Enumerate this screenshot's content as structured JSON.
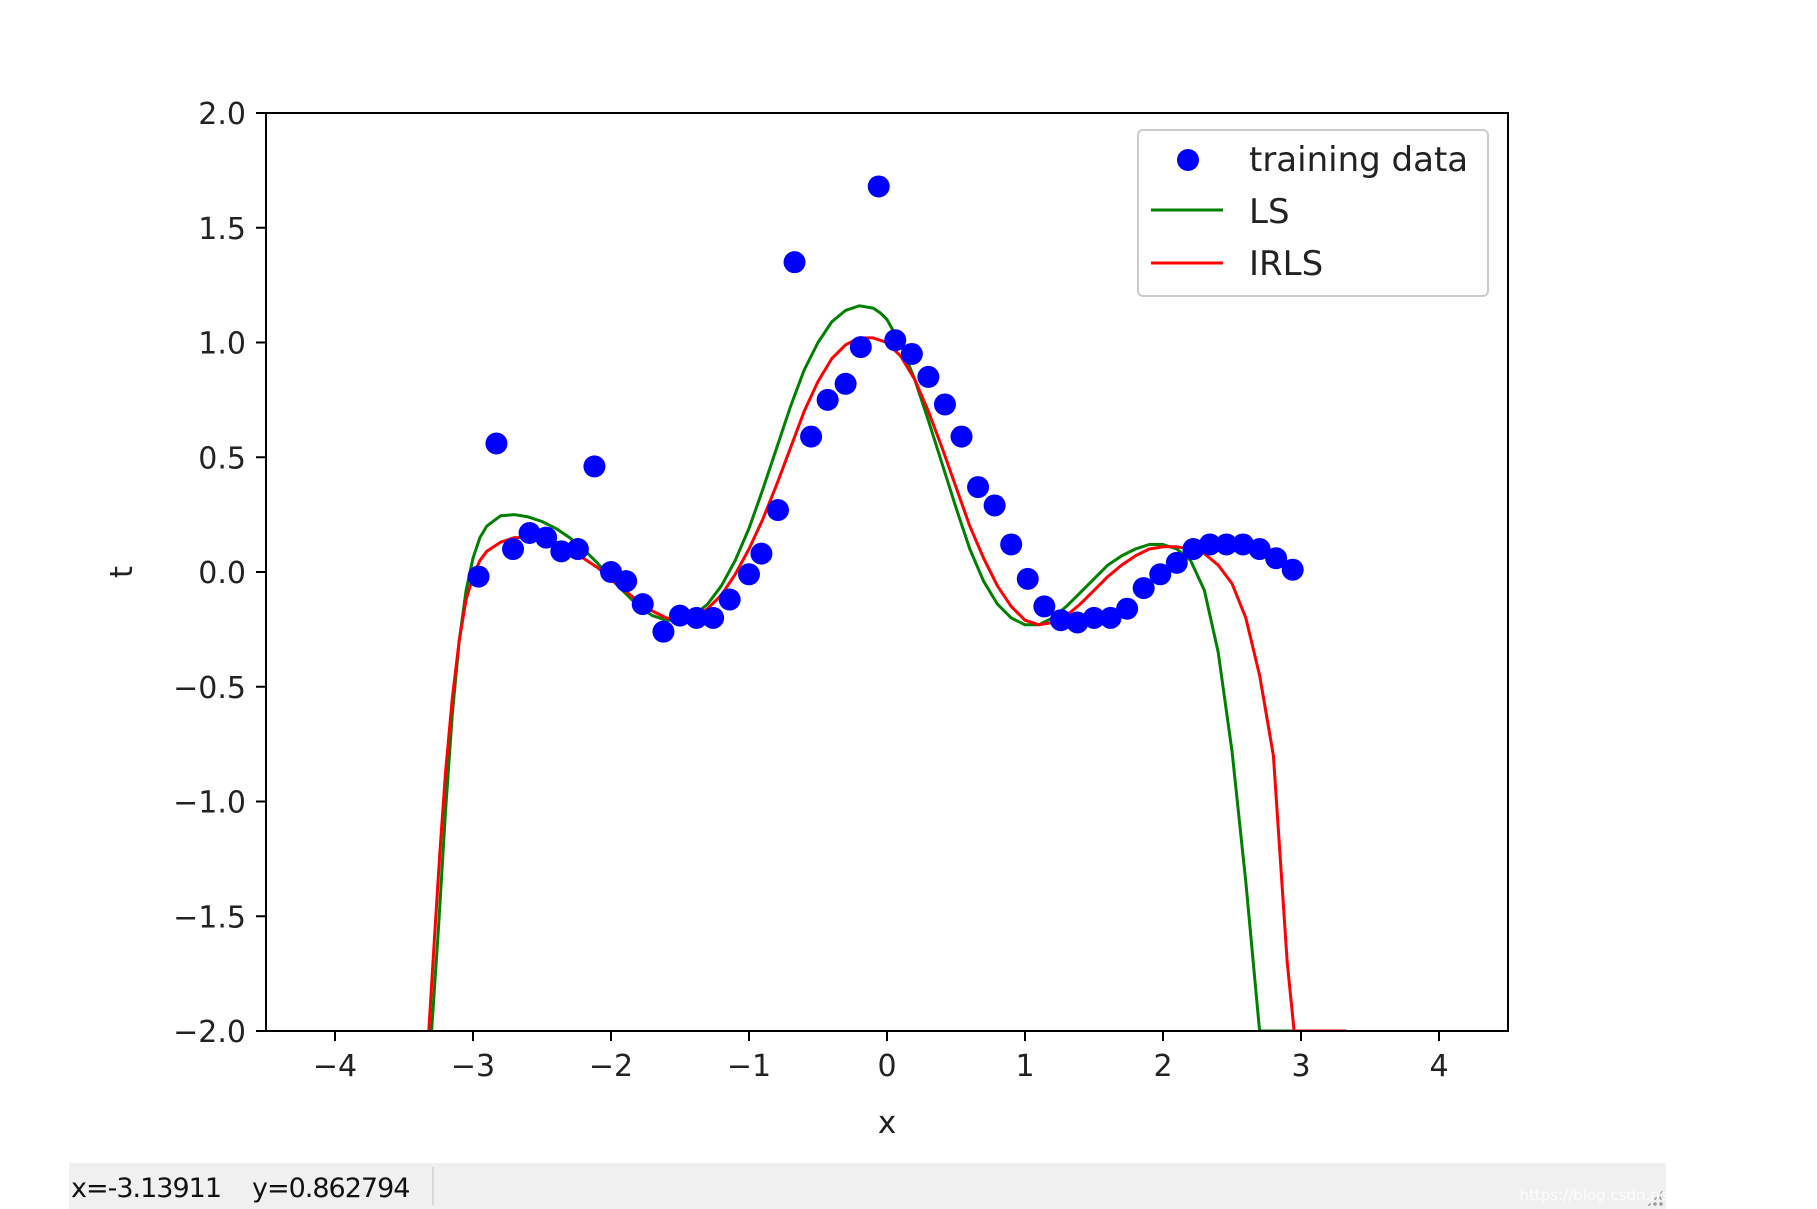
{
  "chart_data": {
    "type": "scatter",
    "xlabel": "x",
    "ylabel": "t",
    "xlim": [
      -4.5,
      4.5
    ],
    "ylim": [
      -2.0,
      2.0
    ],
    "xticks": [
      -4,
      -3,
      -2,
      -1,
      0,
      1,
      2,
      3,
      4
    ],
    "xtick_labels": [
      "−4",
      "−3",
      "−2",
      "−1",
      "0",
      "1",
      "2",
      "3",
      "4"
    ],
    "yticks": [
      -2.0,
      -1.5,
      -1.0,
      -0.5,
      0.0,
      0.5,
      1.0,
      1.5,
      2.0
    ],
    "ytick_labels": [
      "−2.0",
      "−1.5",
      "−1.0",
      "−0.5",
      "0.0",
      "0.5",
      "1.0",
      "1.5",
      "2.0"
    ],
    "grid": false,
    "legend_position": "top-right",
    "series": [
      {
        "name": "training data",
        "kind": "scatter",
        "color": "#0000ff",
        "x": [
          -2.96,
          -2.83,
          -2.71,
          -2.59,
          -2.47,
          -2.36,
          -2.24,
          -2.12,
          -2.0,
          -1.89,
          -1.77,
          -1.62,
          -1.5,
          -1.38,
          -1.26,
          -1.14,
          -1.0,
          -0.91,
          -0.79,
          -0.67,
          -0.55,
          -0.43,
          -0.3,
          -0.19,
          -0.06,
          0.06,
          0.18,
          0.3,
          0.42,
          0.54,
          0.66,
          0.78,
          0.9,
          1.02,
          1.14,
          1.26,
          1.38,
          1.5,
          1.62,
          1.74,
          1.86,
          1.98,
          2.1,
          2.22,
          2.34,
          2.46,
          2.58,
          2.7,
          2.82,
          2.94
        ],
        "y": [
          -0.02,
          0.56,
          0.1,
          0.17,
          0.15,
          0.09,
          0.1,
          0.46,
          0.0,
          -0.04,
          -0.14,
          -0.26,
          -0.19,
          -0.2,
          -0.2,
          -0.12,
          -0.01,
          0.08,
          0.27,
          1.35,
          0.59,
          0.75,
          0.82,
          0.98,
          1.68,
          1.01,
          0.95,
          0.85,
          0.73,
          0.59,
          0.37,
          0.29,
          0.12,
          -0.03,
          -0.15,
          -0.21,
          -0.22,
          -0.2,
          -0.2,
          -0.16,
          -0.07,
          -0.01,
          0.04,
          0.1,
          0.12,
          0.12,
          0.12,
          0.1,
          0.06,
          0.01
        ]
      },
      {
        "name": "LS",
        "kind": "line",
        "color": "#008000",
        "x": [
          -3.3,
          -3.25,
          -3.2,
          -3.15,
          -3.1,
          -3.05,
          -3.0,
          -2.95,
          -2.9,
          -2.8,
          -2.7,
          -2.6,
          -2.5,
          -2.4,
          -2.3,
          -2.2,
          -2.1,
          -2.0,
          -1.9,
          -1.8,
          -1.7,
          -1.6,
          -1.5,
          -1.4,
          -1.3,
          -1.2,
          -1.1,
          -1.0,
          -0.9,
          -0.8,
          -0.7,
          -0.6,
          -0.5,
          -0.4,
          -0.3,
          -0.2,
          -0.1,
          -0.05,
          0.0,
          0.1,
          0.2,
          0.3,
          0.4,
          0.5,
          0.6,
          0.7,
          0.8,
          0.9,
          1.0,
          1.1,
          1.2,
          1.3,
          1.4,
          1.5,
          1.6,
          1.7,
          1.8,
          1.9,
          2.0,
          2.1,
          2.2,
          2.3,
          2.4,
          2.5,
          2.6,
          2.7,
          2.8,
          2.85,
          2.9,
          2.95,
          3.0,
          3.05,
          3.1,
          3.15,
          3.2,
          3.23
        ],
        "y": [
          -2.0,
          -1.55,
          -1.05,
          -0.62,
          -0.3,
          -0.08,
          0.06,
          0.15,
          0.2,
          0.245,
          0.25,
          0.24,
          0.22,
          0.19,
          0.15,
          0.1,
          0.04,
          -0.03,
          -0.09,
          -0.15,
          -0.19,
          -0.21,
          -0.21,
          -0.19,
          -0.14,
          -0.06,
          0.05,
          0.19,
          0.36,
          0.54,
          0.72,
          0.88,
          1.0,
          1.09,
          1.14,
          1.16,
          1.15,
          1.13,
          1.1,
          0.99,
          0.84,
          0.66,
          0.47,
          0.28,
          0.1,
          -0.04,
          -0.14,
          -0.2,
          -0.23,
          -0.23,
          -0.2,
          -0.15,
          -0.09,
          -0.03,
          0.03,
          0.07,
          0.1,
          0.12,
          0.12,
          0.1,
          0.05,
          -0.08,
          -0.35,
          -0.78,
          -1.35,
          -2.0,
          -2.0,
          -2.0,
          -2.0,
          -2.0,
          -2.0,
          -2.0,
          -2.0,
          -2.0,
          -2.0,
          -2.0
        ]
      },
      {
        "name": "IRLS",
        "kind": "line",
        "color": "#ff0000",
        "x": [
          -3.32,
          -3.28,
          -3.24,
          -3.2,
          -3.15,
          -3.1,
          -3.05,
          -3.0,
          -2.95,
          -2.9,
          -2.8,
          -2.7,
          -2.6,
          -2.5,
          -2.4,
          -2.3,
          -2.2,
          -2.1,
          -2.0,
          -1.9,
          -1.8,
          -1.7,
          -1.6,
          -1.5,
          -1.4,
          -1.3,
          -1.2,
          -1.1,
          -1.0,
          -0.9,
          -0.8,
          -0.7,
          -0.6,
          -0.5,
          -0.4,
          -0.3,
          -0.2,
          -0.1,
          0.0,
          0.1,
          0.2,
          0.3,
          0.4,
          0.5,
          0.6,
          0.7,
          0.8,
          0.9,
          1.0,
          1.1,
          1.2,
          1.3,
          1.4,
          1.5,
          1.6,
          1.7,
          1.8,
          1.9,
          2.0,
          2.1,
          2.2,
          2.3,
          2.4,
          2.5,
          2.6,
          2.7,
          2.8,
          2.85,
          2.9,
          2.95,
          3.0,
          3.05,
          3.1,
          3.15,
          3.2,
          3.25,
          3.3,
          3.33
        ],
        "y": [
          -2.0,
          -1.6,
          -1.22,
          -0.88,
          -0.55,
          -0.3,
          -0.12,
          -0.02,
          0.05,
          0.09,
          0.13,
          0.15,
          0.15,
          0.14,
          0.12,
          0.1,
          0.06,
          0.02,
          -0.03,
          -0.08,
          -0.13,
          -0.17,
          -0.2,
          -0.21,
          -0.2,
          -0.16,
          -0.1,
          -0.01,
          0.1,
          0.23,
          0.38,
          0.54,
          0.7,
          0.83,
          0.93,
          0.99,
          1.02,
          1.02,
          1.0,
          0.94,
          0.84,
          0.7,
          0.54,
          0.37,
          0.2,
          0.06,
          -0.06,
          -0.15,
          -0.21,
          -0.23,
          -0.22,
          -0.19,
          -0.14,
          -0.08,
          -0.02,
          0.03,
          0.07,
          0.1,
          0.11,
          0.11,
          0.1,
          0.08,
          0.03,
          -0.05,
          -0.2,
          -0.45,
          -0.8,
          -1.25,
          -1.7,
          -2.0,
          -2.0,
          -2.0,
          -2.0,
          -2.0,
          -2.0,
          -2.0,
          -2.0,
          -2.0
        ]
      }
    ]
  },
  "statusbar": {
    "x_readout": "x=-3.13911",
    "y_readout": "y=0.862794"
  },
  "watermark": "https://blog.csdn.net/weixin_43702920"
}
